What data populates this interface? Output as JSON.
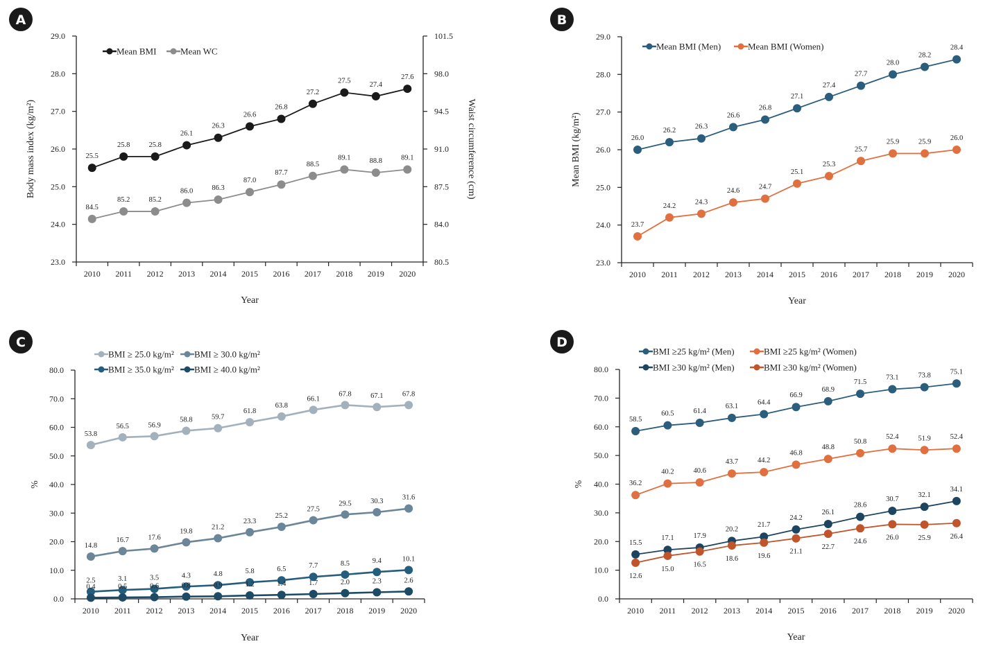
{
  "figure": {
    "x_axis_label": "Year"
  },
  "chart_data": [
    {
      "panel": "A",
      "type": "line",
      "categories": [
        "2010",
        "2011",
        "2012",
        "2013",
        "2014",
        "2015",
        "2016",
        "2017",
        "2018",
        "2019",
        "2020"
      ],
      "xlabel": "Year",
      "ylabel": "Body mass index (kg/m²)",
      "ylim": [
        23.0,
        29.0
      ],
      "yticks": [
        "23.0",
        "24.0",
        "25.0",
        "26.0",
        "27.0",
        "28.0",
        "29.0"
      ],
      "y2label": "Waist circumference (cm)",
      "y2lim": [
        80.5,
        101.5
      ],
      "y2ticks": [
        "80.5",
        "84.0",
        "87.5",
        "91.0",
        "94.5",
        "98.0",
        "101.5"
      ],
      "legend": "top-left",
      "grid": false,
      "series": [
        {
          "name": "Mean BMI",
          "axis": "left",
          "color": "#1a1a1a",
          "label_pos": "above",
          "values": [
            25.5,
            25.8,
            25.8,
            26.1,
            26.3,
            26.6,
            26.8,
            27.2,
            27.5,
            27.4,
            27.6
          ]
        },
        {
          "name": "Mean WC",
          "axis": "right",
          "color": "#8c8c8c",
          "label_pos": "above",
          "values": [
            84.5,
            85.2,
            85.2,
            86.0,
            86.3,
            87.0,
            87.7,
            88.5,
            89.1,
            88.8,
            89.1
          ]
        }
      ]
    },
    {
      "panel": "B",
      "type": "line",
      "categories": [
        "2010",
        "2011",
        "2012",
        "2013",
        "2014",
        "2015",
        "2016",
        "2017",
        "2018",
        "2019",
        "2020"
      ],
      "xlabel": "Year",
      "ylabel": "Mean BMI (kg/m²)",
      "ylim": [
        23.0,
        29.0
      ],
      "yticks": [
        "23.0",
        "24.0",
        "25.0",
        "26.0",
        "27.0",
        "28.0",
        "29.0"
      ],
      "legend": "top-left",
      "grid": false,
      "series": [
        {
          "name": "Mean BMI (Men)",
          "color": "#2b5d7c",
          "label_pos": "above",
          "values": [
            26.0,
            26.2,
            26.3,
            26.6,
            26.8,
            27.1,
            27.4,
            27.7,
            28.0,
            28.2,
            28.4
          ]
        },
        {
          "name": "Mean BMI (Women)",
          "color": "#e0703f",
          "label_pos": "above",
          "values": [
            23.7,
            24.2,
            24.3,
            24.6,
            24.7,
            25.1,
            25.3,
            25.7,
            25.9,
            25.9,
            26.0
          ]
        }
      ]
    },
    {
      "panel": "C",
      "type": "line",
      "categories": [
        "2010",
        "2011",
        "2012",
        "2013",
        "2014",
        "2015",
        "2016",
        "2017",
        "2018",
        "2019",
        "2020"
      ],
      "xlabel": "Year",
      "ylabel": "%",
      "ylim": [
        0.0,
        80.0
      ],
      "yticks": [
        "0.0",
        "10.0",
        "20.0",
        "30.0",
        "40.0",
        "50.0",
        "60.0",
        "70.0",
        "80.0"
      ],
      "legend": "top-left",
      "grid": false,
      "series": [
        {
          "name": "BMI ≥ 25.0 kg/m²",
          "color": "#a3b1bd",
          "label_pos": "above",
          "values": [
            53.8,
            56.5,
            56.9,
            58.8,
            59.7,
            61.8,
            63.8,
            66.1,
            67.8,
            67.1,
            67.8
          ]
        },
        {
          "name": "BMI ≥ 30.0 kg/m²",
          "color": "#6b8599",
          "label_pos": "above",
          "values": [
            14.8,
            16.7,
            17.6,
            19.8,
            21.2,
            23.3,
            25.2,
            27.5,
            29.5,
            30.3,
            31.6
          ]
        },
        {
          "name": "BMI ≥ 35.0 kg/m²",
          "color": "#255d7d",
          "label_pos": "above",
          "values": [
            2.5,
            3.1,
            3.5,
            4.3,
            4.8,
            5.8,
            6.5,
            7.7,
            8.5,
            9.4,
            10.1
          ]
        },
        {
          "name": "BMI ≥ 40.0 kg/m²",
          "color": "#1d4b66",
          "label_pos": "above",
          "values": [
            0.4,
            0.5,
            0.6,
            0.8,
            0.9,
            1.2,
            1.4,
            1.7,
            2.0,
            2.3,
            2.6
          ]
        }
      ]
    },
    {
      "panel": "D",
      "type": "line",
      "categories": [
        "2010",
        "2011",
        "2012",
        "2013",
        "2014",
        "2015",
        "2016",
        "2017",
        "2018",
        "2019",
        "2020"
      ],
      "xlabel": "Year",
      "ylabel": "%",
      "ylim": [
        0.0,
        80.0
      ],
      "yticks": [
        "0.0",
        "10.0",
        "20.0",
        "30.0",
        "40.0",
        "50.0",
        "60.0",
        "70.0",
        "80.0"
      ],
      "legend": "top-left",
      "grid": false,
      "series": [
        {
          "name": "BMI ≥25  kg/m² (Men)",
          "color": "#2b5d7c",
          "label_pos": "above",
          "values": [
            58.5,
            60.5,
            61.4,
            63.1,
            64.4,
            66.9,
            68.9,
            71.5,
            73.1,
            73.8,
            75.1
          ]
        },
        {
          "name": "BMI ≥25  kg/m² (Women)",
          "color": "#e0703f",
          "label_pos": "above",
          "values": [
            36.2,
            40.2,
            40.6,
            43.7,
            44.2,
            46.8,
            48.8,
            50.8,
            52.4,
            51.9,
            52.4
          ]
        },
        {
          "name": "BMI ≥30  kg/m² (Men)",
          "color": "#1d4560",
          "label_pos": "above",
          "values": [
            15.5,
            17.1,
            17.9,
            20.2,
            21.7,
            24.2,
            26.1,
            28.6,
            30.7,
            32.1,
            34.1
          ]
        },
        {
          "name": "BMI ≥30  kg/m² (Women)",
          "color": "#c0542a",
          "label_pos": "below",
          "values": [
            12.6,
            15.0,
            16.5,
            18.6,
            19.6,
            21.1,
            22.7,
            24.6,
            26.0,
            25.9,
            26.4
          ]
        }
      ]
    }
  ]
}
